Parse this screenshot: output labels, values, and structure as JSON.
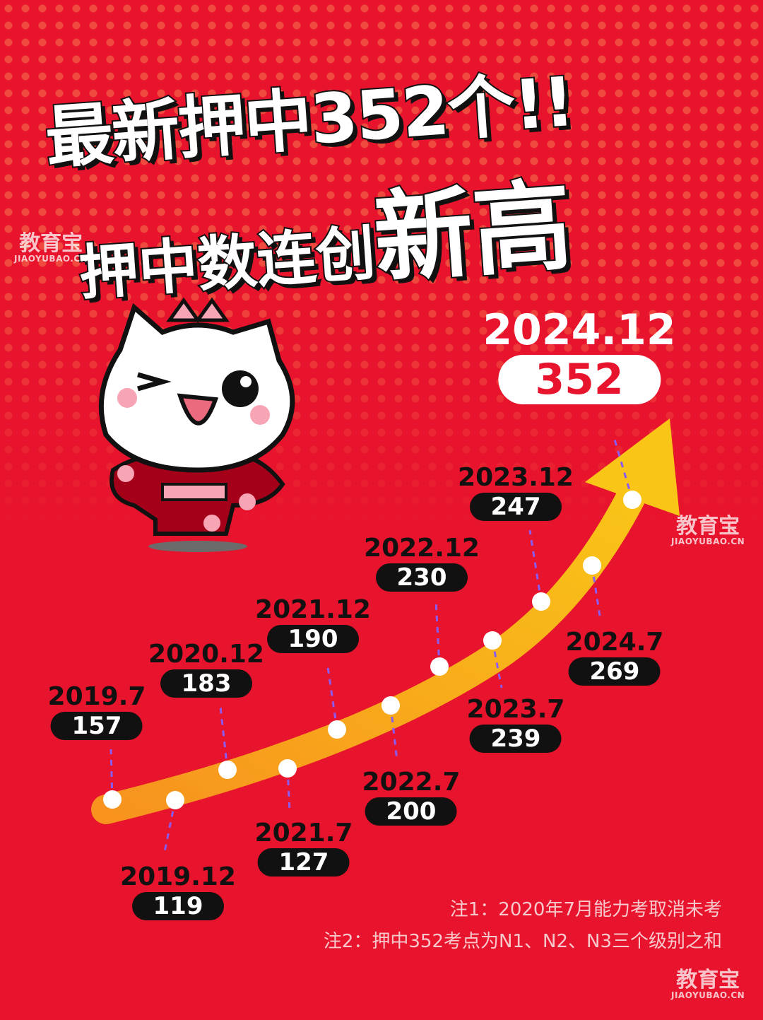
{
  "title": {
    "line1": "最新押中352个!!",
    "line2_prefix": "押中数连创",
    "line2_big": "新高"
  },
  "watermark": {
    "cn": "教育宝",
    "en": "JIAOYUBAO.CN"
  },
  "colors": {
    "background": "#e8132c",
    "arrow_start": "#f7931e",
    "arrow_end": "#f9c517",
    "label_bg": "#111111",
    "guide": "#8a5cf5"
  },
  "chart_data": {
    "type": "line",
    "title": "",
    "categories": [
      "2019.7",
      "2019.12",
      "2020.12",
      "2021.7",
      "2021.12",
      "2022.7",
      "2022.12",
      "2023.7",
      "2023.12",
      "2024.7",
      "2024.12"
    ],
    "values": [
      157,
      119,
      183,
      127,
      190,
      200,
      230,
      239,
      247,
      269,
      352
    ],
    "value_labels": [
      "157",
      "119",
      "183",
      "127",
      "190",
      "200",
      "230",
      "239",
      "247",
      "269",
      "352"
    ],
    "highlight": "2024.12"
  },
  "notes": [
    "注1：2020年7月能力考取消未考",
    "注2：押中352考点为N1、N2、N3三个级别之和"
  ]
}
